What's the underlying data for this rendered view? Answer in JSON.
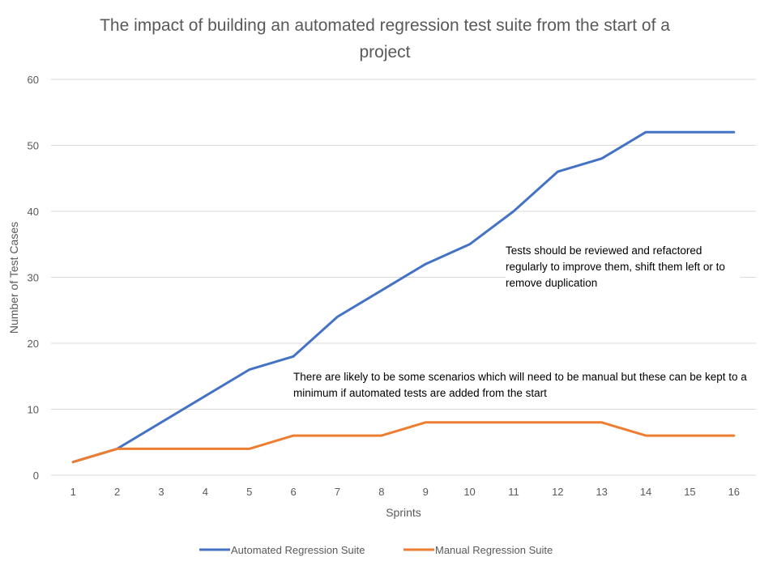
{
  "chart_data": {
    "type": "line",
    "title_line1": "The impact of building an automated regression test suite from the start of a",
    "title_line2": "project",
    "xlabel": "Sprints",
    "ylabel": "Number of Test Cases",
    "x": [
      1,
      2,
      3,
      4,
      5,
      6,
      7,
      8,
      9,
      10,
      11,
      12,
      13,
      14,
      15,
      16
    ],
    "ylim": [
      0,
      60
    ],
    "yticks": [
      0,
      10,
      20,
      30,
      40,
      50,
      60
    ],
    "grid": "horizontal",
    "legend_position": "bottom",
    "series": [
      {
        "name": "Automated Regression Suite",
        "color": "#4472C4",
        "values": [
          2,
          4,
          8,
          12,
          16,
          18,
          24,
          28,
          32,
          35,
          40,
          46,
          48,
          52,
          52,
          52
        ]
      },
      {
        "name": "Manual Regression Suite",
        "color": "#ED7D31",
        "values": [
          2,
          4,
          4,
          4,
          4,
          6,
          6,
          6,
          8,
          8,
          8,
          8,
          8,
          6,
          6,
          6
        ]
      }
    ],
    "annotations": [
      "Tests should be reviewed and refactored regularly to improve them, shift them left or to remove duplication",
      "There are likely to be some scenarios which will need to be manual but these can be kept to a minimum if automated tests are added from the start"
    ]
  }
}
